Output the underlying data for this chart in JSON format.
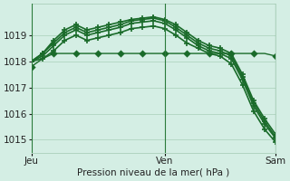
{
  "background_color": "#d4eee4",
  "grid_color": "#b0d4c0",
  "line_color": "#1a6b2a",
  "title": "Pression niveau de la mer( hPa )",
  "ylim": [
    1014.5,
    1020.2
  ],
  "yticks": [
    1015,
    1016,
    1017,
    1018,
    1019
  ],
  "xtick_labels": [
    "Jeu",
    "Ven",
    "Sam"
  ],
  "xtick_positions": [
    0,
    12,
    22
  ],
  "xlim": [
    0,
    22
  ],
  "series": [
    [
      1017.8,
      1018.1,
      1018.3,
      1018.3,
      1018.3,
      1018.3,
      1018.3,
      1018.3,
      1018.3,
      1018.3,
      1018.3,
      1018.3,
      1018.3,
      1018.3,
      1018.3,
      1018.3,
      1018.3,
      1018.3,
      1018.3,
      1018.3,
      1018.3,
      1018.3,
      1018.2
    ],
    [
      1018.0,
      1018.3,
      1018.8,
      1019.2,
      1019.4,
      1019.2,
      1019.3,
      1019.4,
      1019.5,
      1019.6,
      1019.65,
      1019.7,
      1019.6,
      1019.4,
      1019.1,
      1018.8,
      1018.6,
      1018.5,
      1018.3,
      1017.5,
      1016.5,
      1015.8,
      1015.2
    ],
    [
      1018.0,
      1018.3,
      1018.7,
      1019.1,
      1019.3,
      1019.1,
      1019.2,
      1019.3,
      1019.4,
      1019.55,
      1019.6,
      1019.65,
      1019.55,
      1019.3,
      1019.0,
      1018.7,
      1018.5,
      1018.4,
      1018.2,
      1017.4,
      1016.4,
      1015.7,
      1015.1
    ],
    [
      1018.0,
      1018.2,
      1018.6,
      1019.0,
      1019.2,
      1019.0,
      1019.1,
      1019.2,
      1019.3,
      1019.45,
      1019.5,
      1019.55,
      1019.45,
      1019.2,
      1018.9,
      1018.6,
      1018.4,
      1018.3,
      1018.1,
      1017.3,
      1016.3,
      1015.6,
      1015.05
    ],
    [
      1018.0,
      1018.1,
      1018.4,
      1018.8,
      1019.0,
      1018.8,
      1018.9,
      1019.0,
      1019.1,
      1019.25,
      1019.3,
      1019.35,
      1019.25,
      1019.0,
      1018.7,
      1018.5,
      1018.3,
      1018.2,
      1017.9,
      1017.1,
      1016.1,
      1015.4,
      1014.9
    ]
  ],
  "marker_series": [
    0,
    1,
    2,
    3,
    4
  ],
  "marker_styles": [
    "D",
    "+",
    "+",
    "+",
    "+"
  ],
  "marker_sizes": [
    3,
    5,
    5,
    5,
    5
  ],
  "marker_every": [
    2,
    1,
    1,
    1,
    1
  ],
  "line_widths": [
    1.0,
    1.2,
    1.2,
    1.2,
    1.2
  ],
  "line_styles": [
    "-",
    "-",
    "-",
    "-",
    "-"
  ]
}
